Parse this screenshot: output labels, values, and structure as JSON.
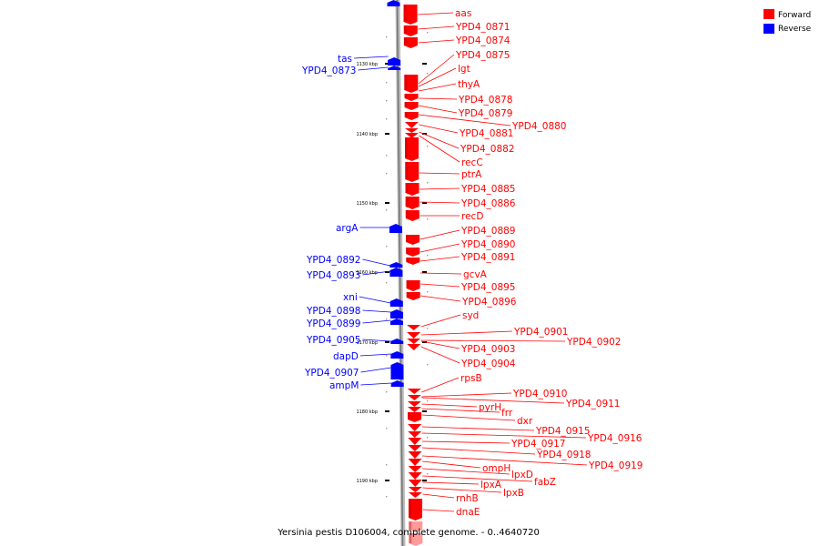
{
  "caption": "Yersinia pestis D106004, complete genome. - 0..4640720",
  "legend": {
    "forward": "Forward",
    "reverse": "Reverse",
    "forward_color": "#ff0000",
    "reverse_color": "#0000ff"
  },
  "scale_ticks": [
    "1130 kbp",
    "1140 kbp",
    "1150 kbp",
    "1160 kbp",
    "1170 kbp",
    "1180 kbp",
    "1190 kbp"
  ],
  "reverse_labels": [
    "tas",
    "YPD4_0873",
    "argA",
    "YPD4_0892",
    "YPD4_0893",
    "xni",
    "YPD4_0898",
    "YPD4_0899",
    "YPD4_0905",
    "dapD",
    "YPD4_0907",
    "ampM"
  ],
  "forward_labels": [
    "aas",
    "YPD4_0871",
    "YPD4_0874",
    "YPD4_0875",
    "lgt",
    "thyA",
    "YPD4_0878",
    "YPD4_0879",
    "YPD4_0880",
    "YPD4_0881",
    "YPD4_0882",
    "recC",
    "ptrA",
    "YPD4_0885",
    "YPD4_0886",
    "recD",
    "YPD4_0889",
    "YPD4_0890",
    "YPD4_0891",
    "gcvA",
    "YPD4_0895",
    "YPD4_0896",
    "syd",
    "YPD4_0901",
    "YPD4_0902",
    "YPD4_0903",
    "YPD4_0904",
    "rpsB",
    "YPD4_0910",
    "YPD4_0911",
    "pyrH",
    "frr",
    "dxr",
    "YPD4_0915",
    "YPD4_0916",
    "YPD4_0917",
    "YPD4_0918",
    "YPD4_0919",
    "ompH",
    "lpxD",
    "fabZ",
    "lpxA",
    "lpxB",
    "rnhB",
    "dnaE"
  ]
}
